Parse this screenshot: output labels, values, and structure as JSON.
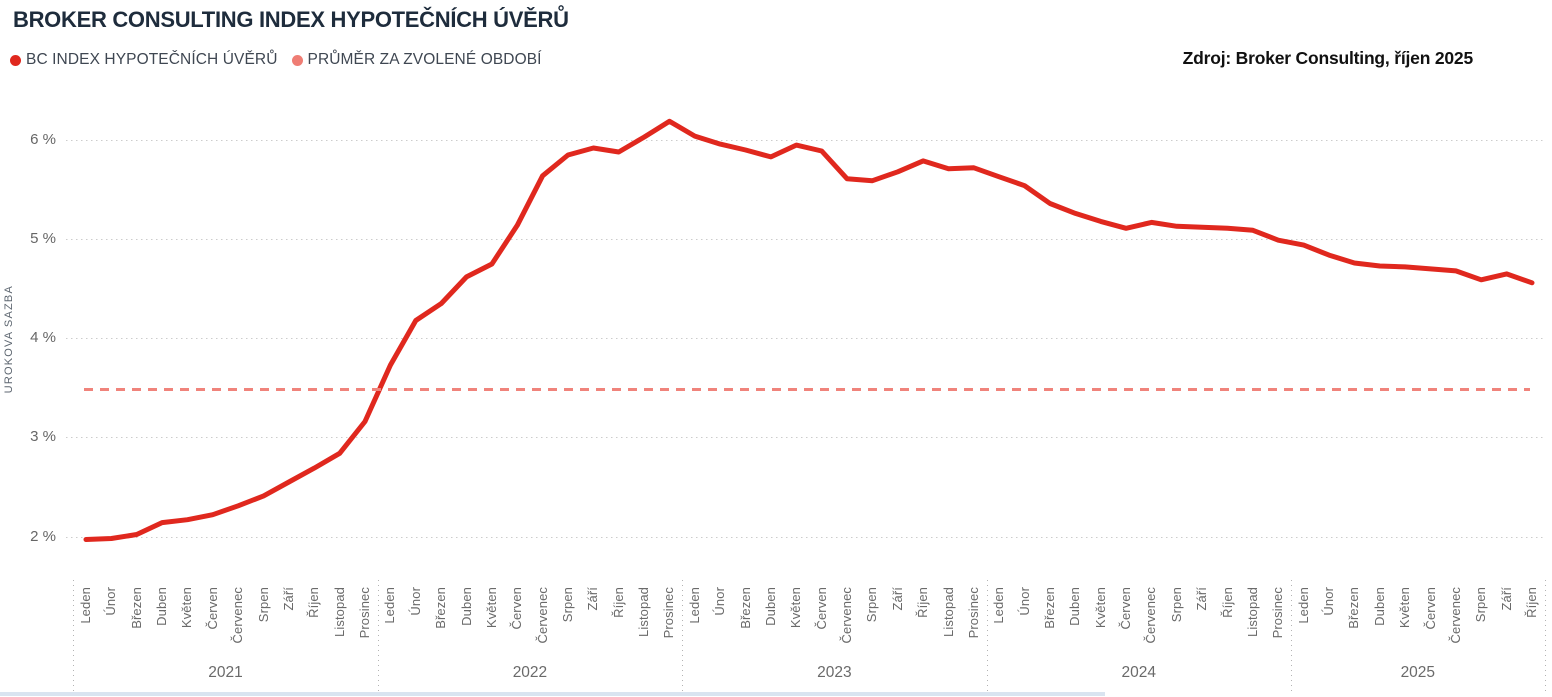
{
  "header": {
    "title": "BROKER CONSULTING INDEX HYPOTEČNÍCH ÚVĚRŮ",
    "source": "Zdroj: Broker Consulting, říjen 2025"
  },
  "legend": {
    "items": [
      {
        "label": "BC INDEX HYPOTEČNÍCH ÚVĚRŮ",
        "color": "#e0281e"
      },
      {
        "label": "PRŮMĚR ZA ZVOLENÉ OBDOBÍ",
        "color": "#ef7d74"
      }
    ]
  },
  "chart_data": {
    "type": "line",
    "title": "BROKER CONSULTING INDEX HYPOTEČNÍCH ÚVĚRŮ",
    "ylabel": "UROKOVA SAZBA",
    "xlabel": "",
    "ylim": [
      1.8,
      6.4
    ],
    "grid": "horizontal-dotted",
    "legend_position": "top-left",
    "yticks": [
      {
        "v": 6,
        "label": "6 %"
      },
      {
        "v": 5,
        "label": "5 %"
      },
      {
        "v": 4,
        "label": "4 %"
      },
      {
        "v": 3,
        "label": "3 %"
      },
      {
        "v": 2,
        "label": "2 %"
      }
    ],
    "month_names": [
      "Leden",
      "Únor",
      "Březen",
      "Duben",
      "Květen",
      "Červen",
      "Červenec",
      "Srpen",
      "Září",
      "Říjen",
      "Listopad",
      "Prosinec"
    ],
    "years": [
      {
        "label": "2021",
        "months": 12
      },
      {
        "label": "2022",
        "months": 12
      },
      {
        "label": "2023",
        "months": 12
      },
      {
        "label": "2024",
        "months": 12
      },
      {
        "label": "2025",
        "months": 10
      }
    ],
    "series": [
      {
        "name": "BC INDEX HYPOTEČNÍCH ÚVĚRŮ",
        "color": "#e0281e",
        "values": [
          1.97,
          1.98,
          2.02,
          2.14,
          2.17,
          2.22,
          2.31,
          2.41,
          2.55,
          2.69,
          2.84,
          3.16,
          3.73,
          4.18,
          4.35,
          4.62,
          4.75,
          5.14,
          5.64,
          5.85,
          5.92,
          5.88,
          6.03,
          6.19,
          6.04,
          5.96,
          5.9,
          5.83,
          5.95,
          5.89,
          5.61,
          5.59,
          5.68,
          5.79,
          5.71,
          5.72,
          5.63,
          5.54,
          5.36,
          5.26,
          5.18,
          5.11,
          5.17,
          5.13,
          5.12,
          5.11,
          5.09,
          4.99,
          4.94,
          4.84,
          4.76,
          4.73,
          4.72,
          4.7,
          4.68,
          4.59,
          4.65,
          4.56
        ]
      }
    ],
    "average_line": {
      "name": "PRŮMĚR ZA ZVOLENÉ OBDOBÍ",
      "value": 3.48,
      "color": "#f0837b",
      "style": "dashed"
    }
  }
}
